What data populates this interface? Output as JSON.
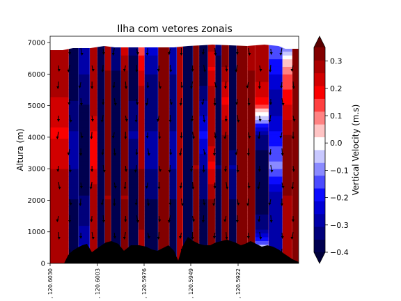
{
  "chart_data": {
    "type": "heatmap",
    "title": "Ilha com vetores zonais",
    "ylabel": "Altura (m)",
    "xlabel": "",
    "ylim": [
      0,
      7200
    ],
    "yticks": [
      0,
      1000,
      2000,
      3000,
      4000,
      5000,
      6000,
      7000
    ],
    "xtick_labels": [
      ", 120.6030",
      ", 120.6003",
      ", 120.5976",
      ", 120.5949",
      ", 120.5922"
    ],
    "colorbar": {
      "label": "Vertical Velocity (m.s)",
      "range": [
        -0.4,
        0.35
      ],
      "extend": "both",
      "tick_values": [
        -0.4,
        -0.3,
        -0.2,
        -0.1,
        0.0,
        0.1,
        0.2,
        0.3
      ],
      "tick_labels": [
        "−0.4",
        "−0.3",
        "−0.2",
        "−0.1",
        "0.0",
        "0.1",
        "0.2",
        "0.3"
      ],
      "level_colors": [
        "#00004f",
        "#00007b",
        "#0000a8",
        "#0000d5",
        "#0b0bff",
        "#4b4bff",
        "#8a8aff",
        "#c8c8ff",
        "#ffffff",
        "#ffc4c4",
        "#ff8282",
        "#ff4040",
        "#fa0000",
        "#d20000",
        "#aa0000",
        "#820000"
      ],
      "colormap": "seismic"
    },
    "columns": [
      {
        "x": 0.0,
        "w": 0.075,
        "profile": [
          0.3,
          0.3,
          0.3,
          0.25,
          0.2,
          0.25,
          0.3,
          0.3
        ]
      },
      {
        "x": 0.075,
        "w": 0.04,
        "profile": [
          -0.4,
          -0.4,
          -0.35,
          -0.3,
          -0.3,
          -0.35,
          -0.4,
          -0.4
        ]
      },
      {
        "x": 0.115,
        "w": 0.045,
        "profile": [
          -0.2,
          -0.3,
          -0.35,
          -0.4,
          -0.4,
          -0.35,
          -0.3,
          -0.3
        ]
      },
      {
        "x": 0.16,
        "w": 0.03,
        "profile": [
          0.3,
          0.3,
          0.3,
          0.2,
          0.2,
          0.3,
          0.3,
          0.25
        ]
      },
      {
        "x": 0.19,
        "w": 0.03,
        "profile": [
          -0.4,
          -0.4,
          -0.4,
          -0.4,
          -0.4,
          -0.4,
          -0.4,
          -0.4
        ]
      },
      {
        "x": 0.22,
        "w": 0.025,
        "profile": [
          0.35,
          0.35,
          0.3,
          0.35,
          0.35,
          0.35,
          0.3,
          0.3
        ]
      },
      {
        "x": 0.245,
        "w": 0.04,
        "profile": [
          -0.4,
          -0.4,
          -0.4,
          -0.4,
          -0.4,
          -0.4,
          -0.35,
          -0.3
        ]
      },
      {
        "x": 0.285,
        "w": 0.03,
        "profile": [
          0.35,
          0.35,
          0.3,
          0.35,
          0.35,
          0.35,
          0.3,
          0.2
        ]
      },
      {
        "x": 0.315,
        "w": 0.04,
        "profile": [
          -0.4,
          -0.4,
          -0.4,
          -0.35,
          -0.3,
          -0.35,
          -0.4,
          -0.3
        ]
      },
      {
        "x": 0.355,
        "w": 0.025,
        "profile": [
          0.3,
          0.3,
          0.35,
          0.3,
          0.3,
          0.3,
          0.2,
          0.1
        ]
      },
      {
        "x": 0.38,
        "w": 0.055,
        "profile": [
          -0.4,
          -0.4,
          -0.35,
          -0.3,
          -0.3,
          -0.35,
          -0.3,
          -0.2
        ]
      },
      {
        "x": 0.435,
        "w": 0.045,
        "profile": [
          0.35,
          0.35,
          0.35,
          0.35,
          0.35,
          0.35,
          0.35,
          0.3
        ]
      },
      {
        "x": 0.48,
        "w": 0.03,
        "profile": [
          -0.4,
          -0.4,
          -0.35,
          -0.3,
          -0.3,
          -0.35,
          -0.3,
          -0.3
        ]
      },
      {
        "x": 0.51,
        "w": 0.025,
        "profile": [
          0.3,
          0.3,
          0.3,
          0.3,
          0.3,
          0.3,
          0.3,
          0.3
        ]
      },
      {
        "x": 0.535,
        "w": 0.04,
        "profile": [
          -0.3,
          -0.4,
          -0.4,
          -0.4,
          -0.4,
          -0.4,
          -0.4,
          -0.35
        ]
      },
      {
        "x": 0.575,
        "w": 0.025,
        "profile": [
          0.3,
          0.35,
          0.35,
          0.3,
          0.35,
          0.35,
          0.35,
          0.35
        ]
      },
      {
        "x": 0.6,
        "w": 0.035,
        "profile": [
          -0.4,
          -0.4,
          -0.35,
          -0.3,
          -0.2,
          -0.3,
          -0.4,
          -0.4
        ]
      },
      {
        "x": 0.635,
        "w": 0.03,
        "profile": [
          0.3,
          0.35,
          0.3,
          0.2,
          0.3,
          0.3,
          0.2,
          0.3
        ]
      },
      {
        "x": 0.665,
        "w": 0.025,
        "profile": [
          -0.4,
          -0.4,
          -0.4,
          -0.35,
          -0.4,
          -0.4,
          -0.4,
          -0.3
        ]
      },
      {
        "x": 0.69,
        "w": 0.03,
        "profile": [
          0.3,
          0.35,
          0.35,
          0.35,
          0.3,
          0.2,
          0.3,
          0.35
        ]
      },
      {
        "x": 0.72,
        "w": 0.03,
        "profile": [
          -0.4,
          -0.4,
          -0.35,
          -0.3,
          -0.4,
          -0.4,
          -0.4,
          -0.4
        ]
      },
      {
        "x": 0.75,
        "w": 0.045,
        "profile": [
          0.3,
          0.35,
          0.35,
          0.35,
          0.35,
          0.35,
          0.35,
          0.3
        ]
      },
      {
        "x": 0.795,
        "w": 0.03,
        "profile": [
          0.3,
          0.35,
          0.35,
          0.35,
          0.35,
          0.35,
          0.3,
          0.3
        ]
      },
      {
        "x": 0.825,
        "w": 0.055,
        "profile": [
          0.2,
          -0.3,
          -0.4,
          -0.4,
          -0.3,
          0.2,
          0.3,
          0.3
        ]
      },
      {
        "x": 0.88,
        "w": 0.055,
        "profile": [
          -0.3,
          -0.3,
          -0.3,
          -0.1,
          -0.2,
          -0.3,
          -0.2,
          -0.1
        ]
      },
      {
        "x": 0.935,
        "w": 0.04,
        "profile": [
          0.3,
          0.3,
          0.3,
          0.35,
          0.3,
          0.2,
          0.1,
          -0.2
        ]
      },
      {
        "x": 0.975,
        "w": 0.025,
        "profile": [
          0.35,
          0.35,
          0.35,
          0.35,
          0.35,
          0.35,
          0.35,
          0.35
        ]
      }
    ]
  }
}
